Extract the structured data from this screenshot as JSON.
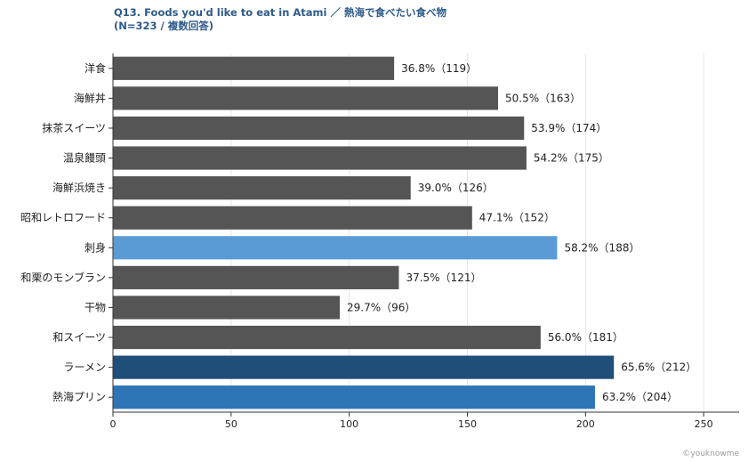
{
  "chart_data": {
    "type": "bar",
    "orientation": "horizontal",
    "title": "Q13. Foods you'd like to eat in Atami ／ 熱海で食べたい食べ物",
    "subtitle": "(N=323 / 複数回答)",
    "credit": "©youknowme",
    "xlim": [
      0,
      265
    ],
    "xticks": [
      0,
      50,
      100,
      150,
      200,
      250
    ],
    "grid": "vertical",
    "categories": [
      "洋食",
      "海鮮丼",
      "抹茶スイーツ",
      "温泉饅頭",
      "海鮮浜焼き",
      "昭和レトロフード",
      "刺身",
      "和栗のモンブラン",
      "干物",
      "和スイーツ",
      "ラーメン",
      "熱海プリン"
    ],
    "values": [
      119,
      163,
      174,
      175,
      126,
      152,
      188,
      121,
      96,
      181,
      212,
      204
    ],
    "percents": [
      "36.8%",
      "50.5%",
      "53.9%",
      "54.2%",
      "39.0%",
      "47.1%",
      "58.2%",
      "37.5%",
      "29.7%",
      "56.0%",
      "65.6%",
      "63.2%"
    ],
    "value_labels": [
      "36.8%（119）",
      "50.5%（163）",
      "53.9%（174）",
      "54.2%（175）",
      "39.0%（126）",
      "47.1%（152）",
      "58.2%（188）",
      "37.5%（121）",
      "29.7%（96）",
      "56.0%（181）",
      "65.6%（212）",
      "63.2%（204）"
    ],
    "colors": [
      "#555555",
      "#555555",
      "#555555",
      "#555555",
      "#555555",
      "#555555",
      "#5b9bd5",
      "#555555",
      "#555555",
      "#555555",
      "#1f4e79",
      "#2e75b6"
    ]
  }
}
